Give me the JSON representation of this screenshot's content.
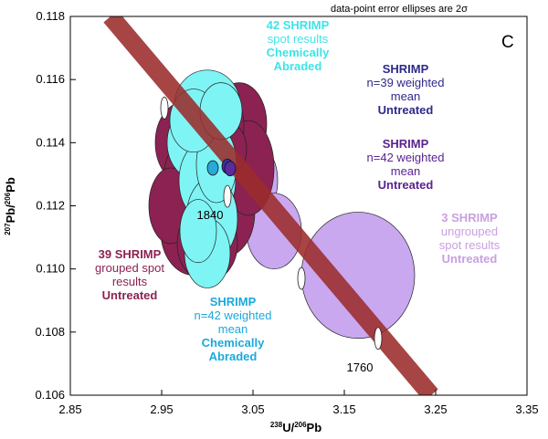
{
  "chart_data": {
    "type": "scatter",
    "panel_label": "C",
    "note": "data-point error ellipses are 2σ",
    "xlabel": {
      "sup1": "238",
      "main1": "U/",
      "sup2": "206",
      "main2": "Pb"
    },
    "ylabel": {
      "sup1": "207",
      "main1": "Pb/",
      "sup2": "206",
      "main2": "Pb"
    },
    "xlim": [
      2.85,
      3.35
    ],
    "ylim": [
      0.106,
      0.118
    ],
    "xticks": [
      "2.85",
      "2.95",
      "3.05",
      "3.15",
      "3.25",
      "3.35"
    ],
    "yticks": [
      "0.106",
      "0.108",
      "0.110",
      "0.112",
      "0.114",
      "0.116",
      "0.118"
    ],
    "concordia": {
      "ages_labeled": [
        "1840",
        "1760"
      ],
      "line_from": {
        "x": 2.894,
        "y": 0.118
      },
      "line_to": {
        "x": 3.245,
        "y": 0.106
      },
      "age_markers": [
        {
          "x": 2.953,
          "y": 0.1151
        },
        {
          "x": 3.022,
          "y": 0.1123
        },
        {
          "x": 3.103,
          "y": 0.1097
        },
        {
          "x": 3.187,
          "y": 0.1078
        }
      ]
    },
    "series": [
      {
        "name": "39 SHRIMP grouped spot results Untreated",
        "color": "#8B2252",
        "ellipses": [
          {
            "x": 2.975,
            "y": 0.114,
            "rx": 0.032,
            "ry": 0.0013
          },
          {
            "x": 2.99,
            "y": 0.1128,
            "rx": 0.038,
            "ry": 0.0016
          },
          {
            "x": 3.02,
            "y": 0.1118,
            "rx": 0.032,
            "ry": 0.0014
          },
          {
            "x": 2.985,
            "y": 0.1112,
            "rx": 0.036,
            "ry": 0.0014
          },
          {
            "x": 3.035,
            "y": 0.1146,
            "rx": 0.03,
            "ry": 0.0013
          },
          {
            "x": 3.045,
            "y": 0.1132,
            "rx": 0.028,
            "ry": 0.0015
          },
          {
            "x": 3.01,
            "y": 0.1145,
            "rx": 0.03,
            "ry": 0.0014
          },
          {
            "x": 2.96,
            "y": 0.112,
            "rx": 0.024,
            "ry": 0.0012
          },
          {
            "x": 3.0,
            "y": 0.1108,
            "rx": 0.033,
            "ry": 0.0012
          },
          {
            "x": 3.025,
            "y": 0.1138,
            "rx": 0.018,
            "ry": 0.0008
          }
        ]
      },
      {
        "name": "42 SHRIMP spot results Chemically Abraded",
        "color": "#7FF4F4",
        "ellipses": [
          {
            "x": 3.0,
            "y": 0.1152,
            "rx": 0.036,
            "ry": 0.0011
          },
          {
            "x": 2.99,
            "y": 0.114,
            "rx": 0.034,
            "ry": 0.0012
          },
          {
            "x": 3.0,
            "y": 0.1128,
            "rx": 0.031,
            "ry": 0.0013
          },
          {
            "x": 3.005,
            "y": 0.1116,
            "rx": 0.028,
            "ry": 0.0013
          },
          {
            "x": 3.0,
            "y": 0.1105,
            "rx": 0.025,
            "ry": 0.0011
          },
          {
            "x": 3.01,
            "y": 0.1133,
            "rx": 0.022,
            "ry": 0.0012
          },
          {
            "x": 2.985,
            "y": 0.1147,
            "rx": 0.026,
            "ry": 0.001
          },
          {
            "x": 3.015,
            "y": 0.115,
            "rx": 0.023,
            "ry": 0.0009
          },
          {
            "x": 2.99,
            "y": 0.1112,
            "rx": 0.02,
            "ry": 0.001
          }
        ]
      },
      {
        "name": "3 SHRIMP ungrouped spot results Untreated",
        "color": "#C9A8F0",
        "ellipses": [
          {
            "x": 3.055,
            "y": 0.1128,
            "rx": 0.022,
            "ry": 0.0011
          },
          {
            "x": 3.073,
            "y": 0.1112,
            "rx": 0.03,
            "ry": 0.0012
          },
          {
            "x": 3.165,
            "y": 0.1098,
            "rx": 0.062,
            "ry": 0.002
          }
        ]
      }
    ],
    "weighted_means": [
      {
        "name": "SHRIMP n=42 weighted mean Chemically Abraded",
        "x": 3.006,
        "y": 0.1132,
        "color": "#29A8D9"
      },
      {
        "name": "SHRIMP n=39 weighted mean Untreated",
        "x": 3.022,
        "y": 0.11325,
        "color": "#3B2FA3"
      },
      {
        "name": "SHRIMP n=42 weighted mean Untreated",
        "x": 3.025,
        "y": 0.11318,
        "color": "#5A2A9E"
      }
    ],
    "annotations": [
      {
        "id": "ann_ca42",
        "lines": [
          "42 SHRIMP",
          "spot results",
          "Chemically",
          "Abraded"
        ],
        "color": "#3FE3E8",
        "bold": [
          true,
          false,
          true,
          true
        ]
      },
      {
        "id": "ann_w39",
        "lines": [
          "SHRIMP",
          "n=39 weighted",
          "mean",
          "Untreated"
        ],
        "color": "#2E2A8C",
        "bold": [
          true,
          false,
          false,
          true
        ]
      },
      {
        "id": "ann_w42u",
        "lines": [
          "SHRIMP",
          "n=42 weighted",
          "mean",
          "Untreated"
        ],
        "color": "#5A2390",
        "bold": [
          true,
          false,
          false,
          true
        ]
      },
      {
        "id": "ann_ungrouped",
        "lines": [
          "3 SHRIMP",
          "ungrouped",
          "spot results",
          "Untreated"
        ],
        "color": "#C9A0E0",
        "bold": [
          true,
          false,
          false,
          true
        ]
      },
      {
        "id": "ann_grouped39",
        "lines": [
          "39 SHRIMP",
          "grouped spot",
          "results",
          "Untreated"
        ],
        "color": "#8B2252",
        "bold": [
          true,
          false,
          false,
          true
        ]
      },
      {
        "id": "ann_w42ca",
        "lines": [
          "SHRIMP",
          "n=42 weighted",
          "mean",
          "Chemically",
          "Abraded"
        ],
        "color": "#1BA8DC",
        "bold": [
          true,
          false,
          false,
          true,
          true
        ]
      }
    ]
  }
}
